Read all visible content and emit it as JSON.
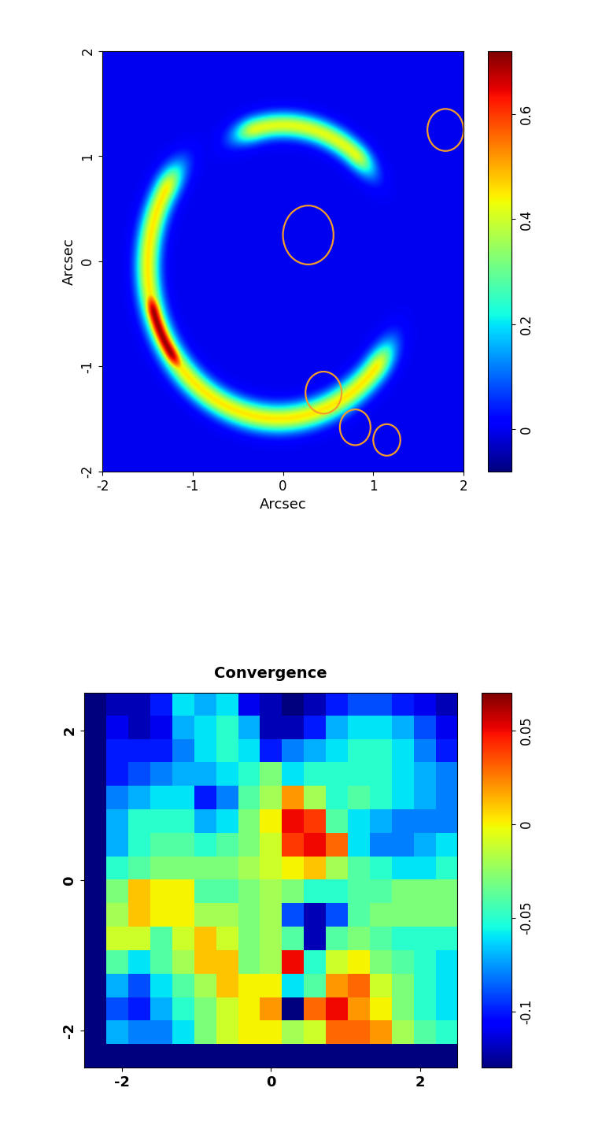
{
  "chart_data": [
    {
      "type": "image",
      "xlabel": "Arcsec",
      "ylabel": "Arcsec",
      "xlim": [
        -2,
        2
      ],
      "ylim": [
        -2,
        2
      ],
      "xticks": [
        -2,
        -1,
        0,
        1,
        2
      ],
      "yticks": [
        -2,
        -1,
        0,
        1,
        2
      ],
      "arcs": [
        {
          "center": [
            0.0,
            0.0
          ],
          "radius": 1.3,
          "theta": [
            52,
            103
          ],
          "peak": 0.42,
          "width": 0.08
        },
        {
          "center": [
            -0.05,
            -0.05
          ],
          "radius": 1.45,
          "theta": [
            150,
            318
          ],
          "peak": 0.45,
          "width": 0.09
        },
        {
          "center": [
            -0.05,
            -0.05
          ],
          "radius": 1.45,
          "theta": [
            198,
            214
          ],
          "peak": 0.7,
          "width": 0.07
        }
      ],
      "circles": [
        {
          "x": 0.28,
          "y": 0.25,
          "radius": 0.28
        },
        {
          "x": 1.8,
          "y": 1.25,
          "radius": 0.2
        },
        {
          "x": 0.45,
          "y": -1.25,
          "radius": 0.2
        },
        {
          "x": 0.8,
          "y": -1.58,
          "radius": 0.17
        },
        {
          "x": 1.15,
          "y": -1.7,
          "radius": 0.15
        }
      ],
      "color": "#f39c2c",
      "colorbar_range": [
        -0.08,
        0.72
      ],
      "colorbar_ticks": [
        0,
        0.2,
        0.4,
        0.6
      ]
    },
    {
      "type": "heatmap",
      "title": "Convergence",
      "xlim": [
        -2.5,
        2.5
      ],
      "ylim": [
        -2.5,
        2.5
      ],
      "xticks": [
        -2,
        0,
        2
      ],
      "yticks": [
        -2,
        0,
        2
      ],
      "cells": [
        [
          -0.13,
          -0.12,
          -0.12,
          -0.1,
          -0.06,
          -0.07,
          -0.06,
          -0.11,
          -0.12,
          -0.13,
          -0.12,
          -0.1,
          -0.09,
          -0.09,
          -0.1,
          -0.11,
          -0.12
        ],
        [
          -0.13,
          -0.11,
          -0.12,
          -0.11,
          -0.07,
          -0.06,
          -0.05,
          -0.07,
          -0.12,
          -0.12,
          -0.1,
          -0.07,
          -0.06,
          -0.06,
          -0.07,
          -0.09,
          -0.11
        ],
        [
          -0.13,
          -0.1,
          -0.1,
          -0.1,
          -0.08,
          -0.06,
          -0.05,
          -0.06,
          -0.1,
          -0.08,
          -0.07,
          -0.06,
          -0.05,
          -0.05,
          -0.06,
          -0.08,
          -0.1
        ],
        [
          -0.13,
          -0.1,
          -0.09,
          -0.08,
          -0.07,
          -0.07,
          -0.06,
          -0.05,
          -0.03,
          -0.06,
          -0.05,
          -0.05,
          -0.05,
          -0.05,
          -0.06,
          -0.07,
          -0.08
        ],
        [
          -0.13,
          -0.08,
          -0.07,
          -0.06,
          -0.06,
          -0.1,
          -0.08,
          -0.04,
          -0.02,
          0.02,
          -0.02,
          -0.05,
          -0.04,
          -0.05,
          -0.06,
          -0.07,
          -0.08
        ],
        [
          -0.13,
          -0.07,
          -0.05,
          -0.05,
          -0.05,
          -0.07,
          -0.06,
          -0.03,
          0.0,
          0.05,
          0.04,
          -0.04,
          -0.06,
          -0.07,
          -0.08,
          -0.08,
          -0.08
        ],
        [
          -0.13,
          -0.07,
          -0.05,
          -0.04,
          -0.04,
          -0.05,
          -0.04,
          -0.03,
          -0.01,
          0.04,
          0.05,
          0.03,
          -0.06,
          -0.08,
          -0.08,
          -0.07,
          -0.06
        ],
        [
          -0.13,
          -0.05,
          -0.04,
          -0.03,
          -0.03,
          -0.03,
          -0.03,
          -0.02,
          -0.01,
          0.0,
          0.01,
          -0.02,
          -0.04,
          -0.05,
          -0.06,
          -0.06,
          -0.05
        ],
        [
          -0.13,
          -0.03,
          0.01,
          0.0,
          0.0,
          -0.04,
          -0.04,
          -0.03,
          -0.02,
          -0.03,
          -0.05,
          -0.05,
          -0.04,
          -0.04,
          -0.03,
          -0.03,
          -0.03
        ],
        [
          -0.13,
          -0.02,
          0.01,
          0.0,
          0.0,
          -0.02,
          -0.02,
          -0.03,
          -0.02,
          -0.09,
          -0.12,
          -0.09,
          -0.04,
          -0.03,
          -0.03,
          -0.03,
          -0.03
        ],
        [
          -0.13,
          -0.01,
          -0.01,
          -0.04,
          -0.01,
          0.01,
          -0.01,
          -0.03,
          -0.02,
          -0.04,
          -0.12,
          -0.04,
          -0.03,
          -0.04,
          -0.05,
          -0.05,
          -0.05
        ],
        [
          -0.13,
          -0.04,
          -0.06,
          -0.04,
          -0.02,
          0.01,
          0.01,
          -0.03,
          -0.02,
          0.05,
          -0.05,
          -0.01,
          0.0,
          -0.03,
          -0.04,
          -0.05,
          -0.06
        ],
        [
          -0.13,
          -0.07,
          -0.09,
          -0.06,
          -0.04,
          -0.02,
          0.01,
          0.0,
          0.0,
          -0.06,
          -0.04,
          0.02,
          0.03,
          -0.01,
          -0.03,
          -0.05,
          -0.06
        ],
        [
          -0.13,
          -0.09,
          -0.1,
          -0.07,
          -0.05,
          -0.03,
          -0.01,
          0.0,
          0.02,
          -0.13,
          0.03,
          0.05,
          0.02,
          0.0,
          -0.03,
          -0.05,
          -0.06
        ],
        [
          -0.13,
          -0.07,
          -0.08,
          -0.08,
          -0.06,
          -0.03,
          -0.01,
          0.0,
          0.0,
          -0.02,
          -0.01,
          0.03,
          0.03,
          0.02,
          -0.02,
          -0.04,
          -0.05
        ],
        [
          -0.13,
          -0.13,
          -0.13,
          -0.13,
          -0.13,
          -0.13,
          -0.13,
          -0.13,
          -0.13,
          -0.13,
          -0.13,
          -0.13,
          -0.13,
          -0.13,
          -0.13,
          -0.13,
          -0.13
        ]
      ],
      "colorbar_range": [
        -0.13,
        0.07
      ],
      "colorbar_ticks": [
        -0.1,
        -0.05,
        0,
        0.05
      ]
    }
  ]
}
